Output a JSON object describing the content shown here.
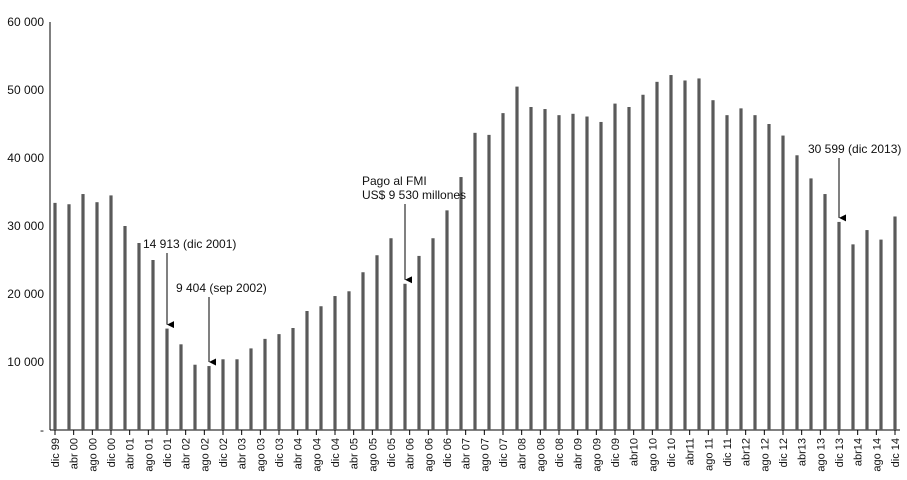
{
  "chart_data": {
    "type": "bar",
    "title": "",
    "xlabel": "",
    "ylabel": "",
    "ylim": [
      0,
      60000
    ],
    "grid": false,
    "bar_color": "#5a5a5a",
    "y_ticks": [
      {
        "value": 0,
        "label": "-"
      },
      {
        "value": 10000,
        "label": "10 000"
      },
      {
        "value": 20000,
        "label": "20 000"
      },
      {
        "value": 30000,
        "label": "30 000"
      },
      {
        "value": 40000,
        "label": "40 000"
      },
      {
        "value": 50000,
        "label": "50 000"
      },
      {
        "value": 60000,
        "label": "60 000"
      }
    ],
    "x_tick_labels": [
      "dic 99",
      "abr 00",
      "ago 00",
      "dic 00",
      "abr 01",
      "ago 01",
      "dic 01",
      "abr 02",
      "ago 02",
      "dic 02",
      "abr 03",
      "ago 03",
      "dic 03",
      "abr 04",
      "ago 04",
      "dic 04",
      "abr 05",
      "ago 05",
      "dic 05",
      "abr 06",
      "ago 06",
      "dic 06",
      "abr 07",
      "ago 07",
      "dic 07",
      "abr 08",
      "ago 08",
      "dic 08",
      "abr 09",
      "ago 09",
      "dic 09",
      "abr10",
      "ago 10",
      "dic 10",
      "abr11",
      "ago 11",
      "dic 11",
      "abr12",
      "ago 12",
      "dic 12",
      "abr13",
      "ago 13",
      "dic 13",
      "abr14",
      "ago 14",
      "dic 14"
    ],
    "values": [
      33400,
      33200,
      34700,
      33500,
      34500,
      30000,
      27500,
      25000,
      14913,
      12600,
      9600,
      9404,
      10400,
      10400,
      12000,
      13400,
      14100,
      15000,
      17500,
      18200,
      19700,
      20400,
      23200,
      25700,
      28200,
      21500,
      25600,
      28200,
      32300,
      37200,
      43700,
      43400,
      46600,
      50500,
      47500,
      47200,
      46300,
      46500,
      46100,
      45300,
      48000,
      47500,
      49300,
      51200,
      52200,
      51400,
      51700,
      48500,
      46300,
      47300,
      46300,
      45000,
      43300,
      40400,
      37000,
      34700,
      30599,
      27300,
      29400,
      28000,
      31400
    ],
    "annotations": [
      {
        "index": 8,
        "lines": [
          "14 913 (dic 2001)"
        ]
      },
      {
        "index": 11,
        "lines": [
          "9 404 (sep 2002)"
        ]
      },
      {
        "index": 25,
        "lines": [
          "Pago al FMI",
          "US$ 9 530 millones"
        ]
      },
      {
        "index": 56,
        "lines": [
          "30 599 (dic 2013)"
        ]
      }
    ]
  }
}
